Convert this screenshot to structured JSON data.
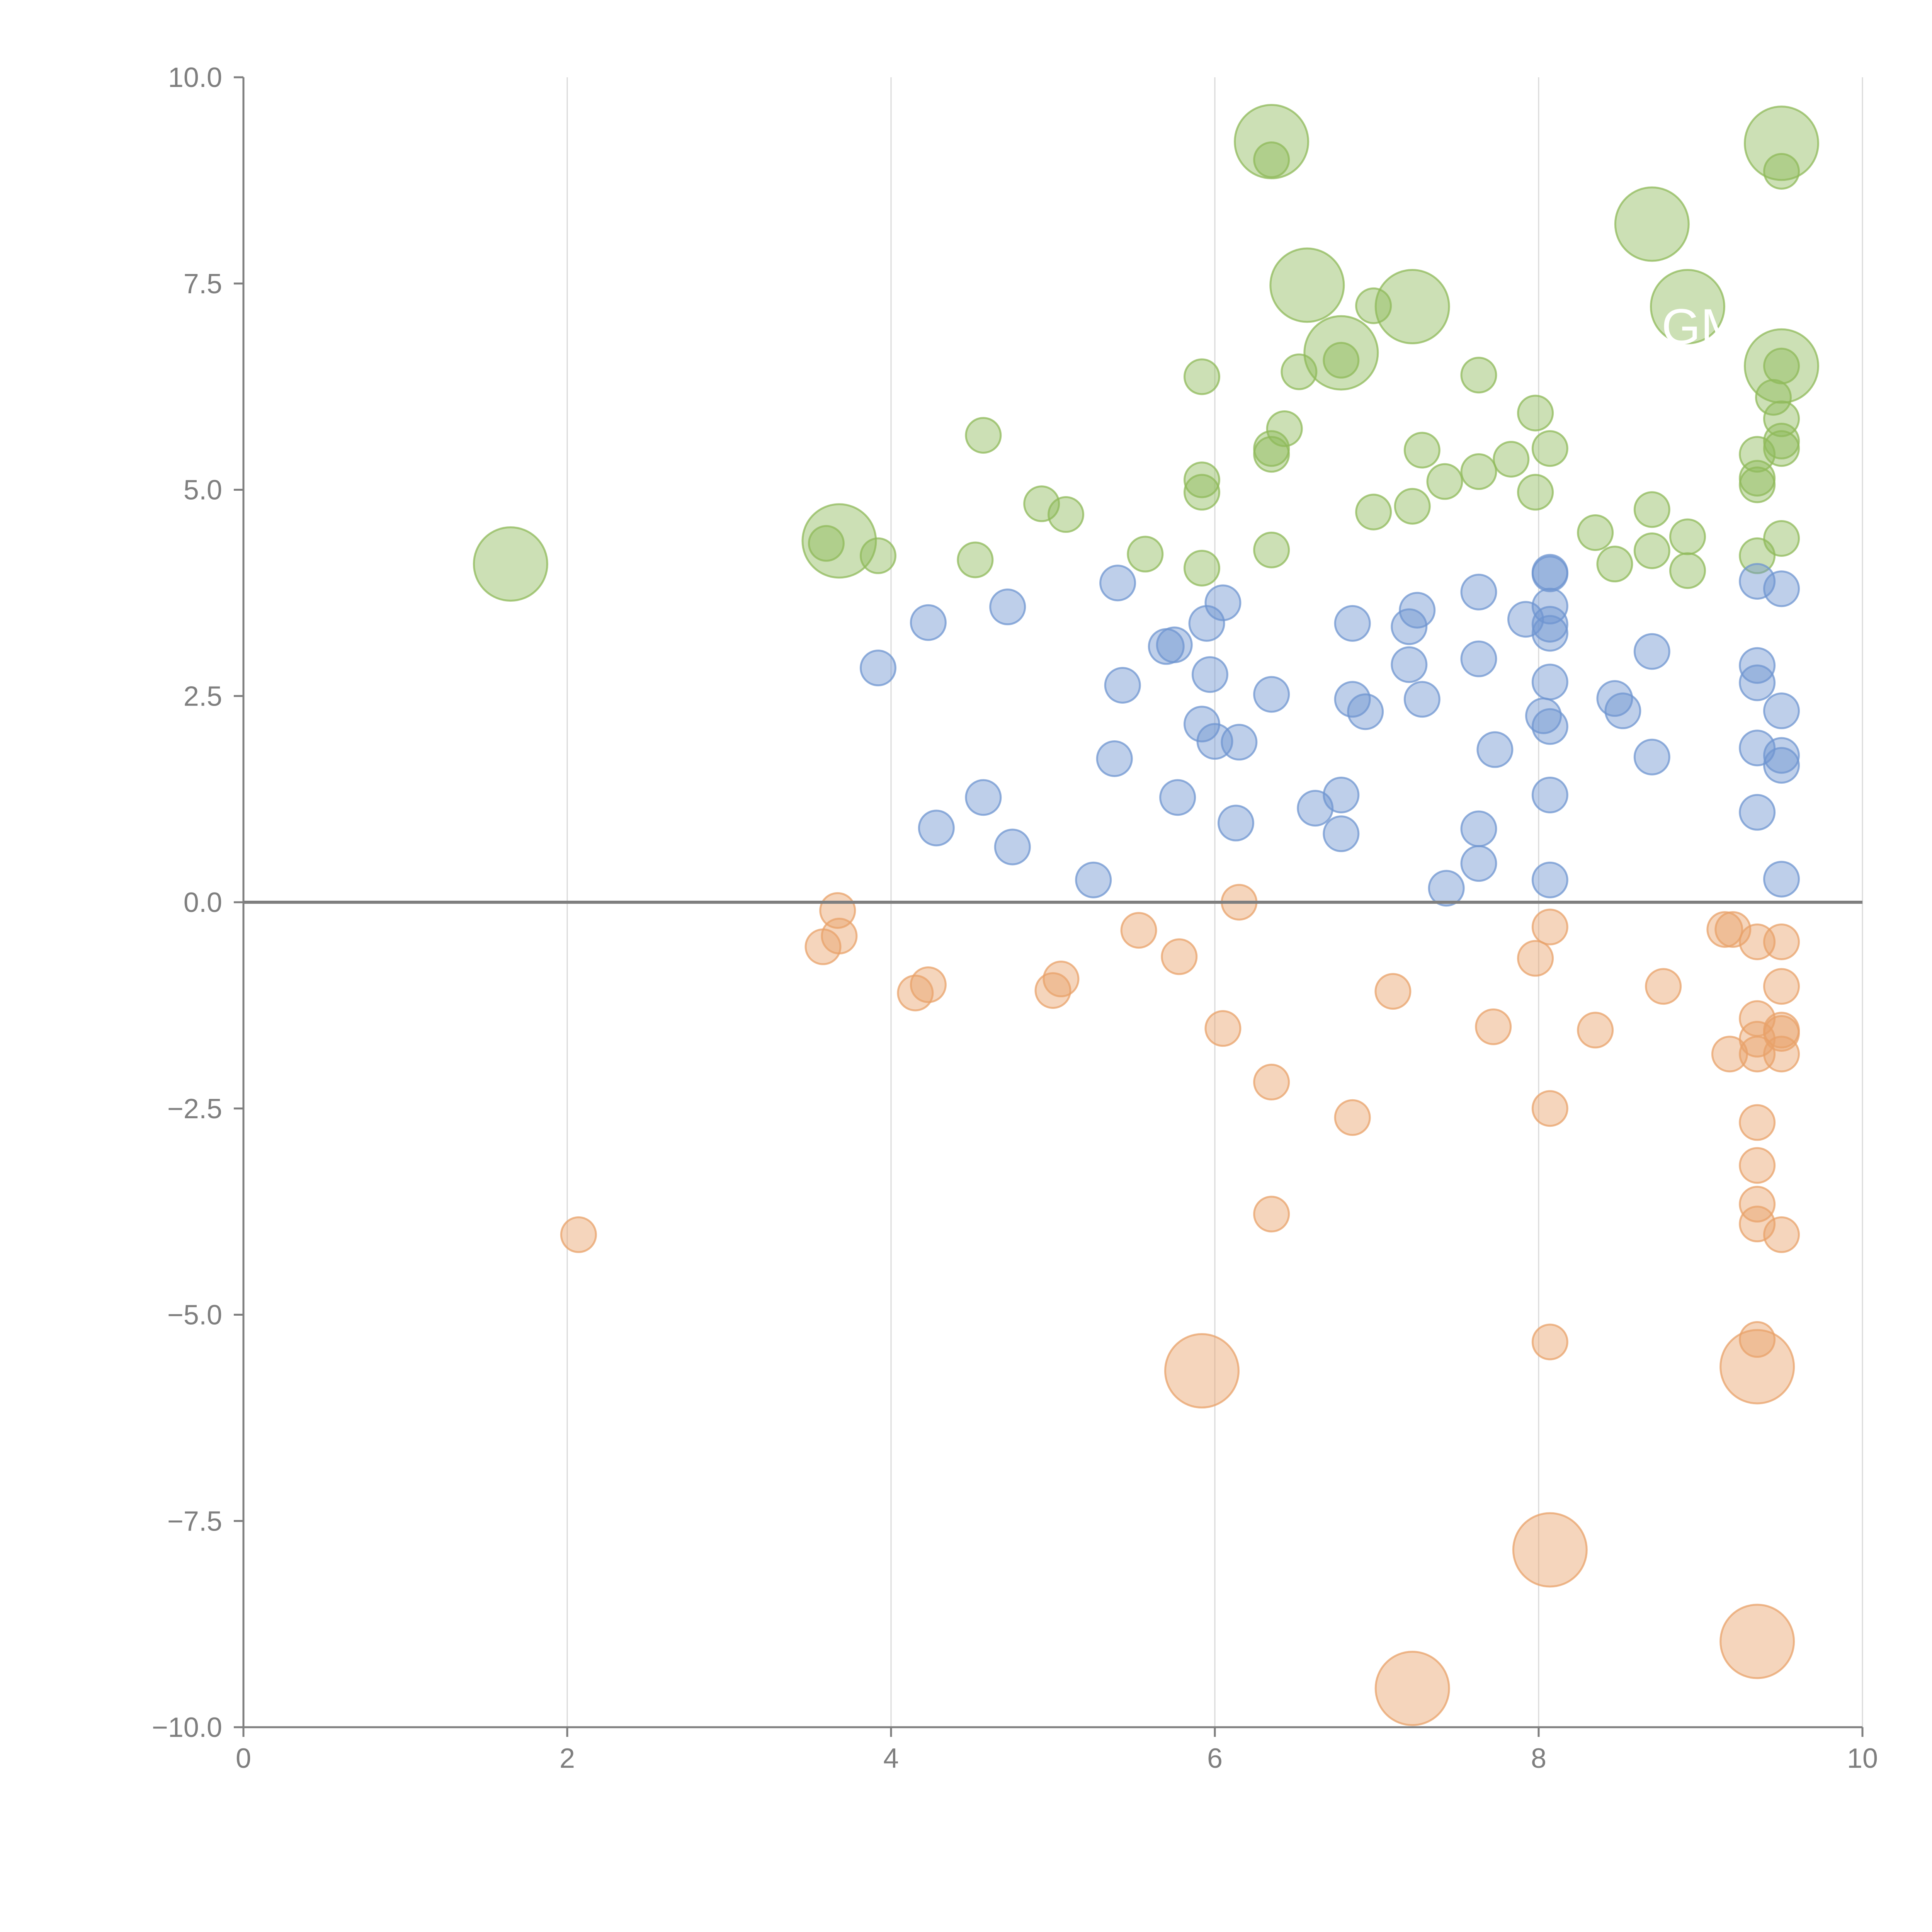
{
  "chart_data": {
    "type": "scatter",
    "title": "",
    "xlabel": "",
    "ylabel": "",
    "xlim": [
      0,
      10
    ],
    "ylim": [
      -10,
      10
    ],
    "x_ticks": [
      0,
      2,
      4,
      6,
      8,
      10
    ],
    "x_tick_labels": [
      "0",
      "2",
      "4",
      "6",
      "8",
      "10"
    ],
    "y_ticks": [
      10,
      7.5,
      5,
      2.5,
      0,
      -2.5,
      -5,
      -7.5,
      -10
    ],
    "y_tick_labels": [
      "10.0",
      "7.5",
      "5.0",
      "2.5",
      "0.0",
      "−2.5",
      "−5.0",
      "−7.5",
      "−10.0"
    ],
    "vertical_grid": true,
    "zero_line": true,
    "annotation": "GM",
    "series": [
      {
        "name": "green",
        "color": "#8fba5a",
        "points": [
          [
            1.65,
            4.1,
            "L"
          ],
          [
            3.68,
            4.38,
            "L"
          ],
          [
            3.6,
            4.35,
            "S"
          ],
          [
            3.92,
            4.2,
            "S"
          ],
          [
            4.52,
            4.15,
            "S"
          ],
          [
            4.57,
            5.66,
            "S"
          ],
          [
            4.93,
            4.83,
            "S"
          ],
          [
            5.08,
            4.7,
            "S"
          ],
          [
            5.57,
            4.22,
            "S"
          ],
          [
            5.92,
            6.37,
            "S"
          ],
          [
            5.92,
            5.12,
            "S"
          ],
          [
            5.92,
            4.97,
            "S"
          ],
          [
            5.92,
            4.05,
            "S"
          ],
          [
            6.35,
            9.22,
            "L"
          ],
          [
            6.35,
            9.0,
            "S"
          ],
          [
            6.35,
            5.5,
            "S"
          ],
          [
            6.35,
            5.43,
            "S"
          ],
          [
            6.35,
            4.27,
            "S"
          ],
          [
            6.43,
            5.74,
            "S"
          ],
          [
            6.52,
            6.43,
            "S"
          ],
          [
            6.57,
            7.48,
            "L"
          ],
          [
            6.78,
            6.66,
            "L"
          ],
          [
            6.78,
            6.57,
            "S"
          ],
          [
            6.98,
            7.23,
            "S"
          ],
          [
            6.98,
            4.73,
            "S"
          ],
          [
            7.22,
            7.22,
            "L"
          ],
          [
            7.22,
            4.8,
            "S"
          ],
          [
            7.28,
            5.48,
            "S"
          ],
          [
            7.42,
            5.1,
            "S"
          ],
          [
            7.63,
            6.39,
            "S"
          ],
          [
            7.63,
            5.22,
            "S"
          ],
          [
            7.83,
            5.37,
            "S"
          ],
          [
            7.98,
            5.93,
            "S"
          ],
          [
            7.98,
            4.97,
            "S"
          ],
          [
            8.07,
            5.5,
            "S"
          ],
          [
            8.35,
            4.48,
            "S"
          ],
          [
            8.47,
            4.1,
            "S"
          ],
          [
            8.7,
            8.22,
            "L"
          ],
          [
            8.7,
            4.76,
            "S"
          ],
          [
            8.7,
            4.26,
            "S"
          ],
          [
            8.92,
            7.22,
            "L"
          ],
          [
            8.92,
            4.43,
            "S"
          ],
          [
            8.92,
            4.02,
            "S"
          ],
          [
            9.35,
            5.43,
            "S"
          ],
          [
            9.35,
            5.14,
            "S"
          ],
          [
            9.35,
            5.06,
            "S"
          ],
          [
            9.35,
            4.2,
            "S"
          ],
          [
            9.5,
            9.2,
            "L"
          ],
          [
            9.5,
            8.86,
            "S"
          ],
          [
            9.5,
            6.5,
            "L"
          ],
          [
            9.5,
            6.5,
            "S"
          ],
          [
            9.45,
            6.12,
            "S"
          ],
          [
            9.5,
            5.86,
            "S"
          ],
          [
            9.5,
            5.59,
            "S"
          ],
          [
            9.5,
            5.5,
            "S"
          ],
          [
            9.5,
            4.41,
            "S"
          ]
        ]
      },
      {
        "name": "blue",
        "color": "#6f95d0",
        "points": [
          [
            3.92,
            2.84
          ],
          [
            4.23,
            3.39
          ],
          [
            4.28,
            0.9
          ],
          [
            4.57,
            1.27
          ],
          [
            4.72,
            3.58
          ],
          [
            4.75,
            0.67
          ],
          [
            5.25,
            0.27
          ],
          [
            5.38,
            1.74
          ],
          [
            5.4,
            3.87
          ],
          [
            5.43,
            2.63
          ],
          [
            5.7,
            3.1
          ],
          [
            5.75,
            3.12
          ],
          [
            5.77,
            1.27
          ],
          [
            5.92,
            2.16
          ],
          [
            5.95,
            3.38
          ],
          [
            5.97,
            2.76
          ],
          [
            6.0,
            1.95
          ],
          [
            6.05,
            3.63
          ],
          [
            6.13,
            0.96
          ],
          [
            6.15,
            1.94
          ],
          [
            6.35,
            2.52
          ],
          [
            6.62,
            1.14
          ],
          [
            6.78,
            1.3
          ],
          [
            6.78,
            0.83
          ],
          [
            6.85,
            3.38
          ],
          [
            6.85,
            2.46
          ],
          [
            6.93,
            2.31
          ],
          [
            7.2,
            3.34
          ],
          [
            7.2,
            2.88
          ],
          [
            7.25,
            3.54
          ],
          [
            7.28,
            2.46
          ],
          [
            7.43,
            0.17
          ],
          [
            7.63,
            3.76
          ],
          [
            7.63,
            2.95
          ],
          [
            7.63,
            0.89
          ],
          [
            7.63,
            0.47
          ],
          [
            7.73,
            1.85
          ],
          [
            7.92,
            3.43
          ],
          [
            8.03,
            2.26
          ],
          [
            8.07,
            4.0
          ],
          [
            8.07,
            3.98
          ],
          [
            8.07,
            3.59
          ],
          [
            8.07,
            3.37
          ],
          [
            8.07,
            3.26
          ],
          [
            8.07,
            2.67
          ],
          [
            8.07,
            2.13
          ],
          [
            8.07,
            1.3
          ],
          [
            8.07,
            0.27
          ],
          [
            8.47,
            2.47
          ],
          [
            8.52,
            2.32
          ],
          [
            8.7,
            3.04
          ],
          [
            8.7,
            1.76
          ],
          [
            9.35,
            3.89
          ],
          [
            9.35,
            2.87
          ],
          [
            9.35,
            2.66
          ],
          [
            9.35,
            1.87
          ],
          [
            9.35,
            1.09
          ],
          [
            9.5,
            3.8
          ],
          [
            9.5,
            2.32
          ],
          [
            9.5,
            1.78
          ],
          [
            9.5,
            1.66
          ],
          [
            9.5,
            0.28
          ]
        ]
      },
      {
        "name": "orange",
        "color": "#e8a26a",
        "points": [
          [
            2.07,
            -4.03,
            "S"
          ],
          [
            3.58,
            -0.54,
            "S"
          ],
          [
            3.67,
            -0.1,
            "S"
          ],
          [
            3.68,
            -0.41,
            "S"
          ],
          [
            4.15,
            -1.1,
            "S"
          ],
          [
            4.23,
            -1.0,
            "S"
          ],
          [
            5.0,
            -1.07,
            "S"
          ],
          [
            5.05,
            -0.93,
            "S"
          ],
          [
            5.53,
            -0.34,
            "S"
          ],
          [
            5.78,
            -0.66,
            "S"
          ],
          [
            5.92,
            -5.68,
            "L"
          ],
          [
            6.05,
            -1.53,
            "S"
          ],
          [
            6.15,
            0.0,
            "S"
          ],
          [
            6.35,
            -2.18,
            "S"
          ],
          [
            6.35,
            -3.78,
            "S"
          ],
          [
            6.85,
            -2.61,
            "S"
          ],
          [
            7.1,
            -1.08,
            "S"
          ],
          [
            7.22,
            -9.53,
            "L"
          ],
          [
            7.72,
            -1.51,
            "S"
          ],
          [
            7.98,
            -0.68,
            "S"
          ],
          [
            8.07,
            -0.3,
            "S"
          ],
          [
            8.07,
            -2.5,
            "S"
          ],
          [
            8.07,
            -5.33,
            "S"
          ],
          [
            8.07,
            -7.85,
            "L"
          ],
          [
            8.35,
            -1.55,
            "S"
          ],
          [
            8.77,
            -1.02,
            "S"
          ],
          [
            9.15,
            -0.33,
            "S"
          ],
          [
            9.2,
            -0.33,
            "S"
          ],
          [
            9.18,
            -1.84,
            "S"
          ],
          [
            9.35,
            -0.48,
            "S"
          ],
          [
            9.35,
            -1.41,
            "S"
          ],
          [
            9.35,
            -1.66,
            "S"
          ],
          [
            9.35,
            -1.84,
            "S"
          ],
          [
            9.35,
            -2.67,
            "S"
          ],
          [
            9.35,
            -3.19,
            "S"
          ],
          [
            9.35,
            -3.66,
            "S"
          ],
          [
            9.35,
            -3.9,
            "S"
          ],
          [
            9.35,
            -5.3,
            "S"
          ],
          [
            9.35,
            -5.63,
            "L"
          ],
          [
            9.35,
            -8.96,
            "L"
          ],
          [
            9.5,
            -0.48,
            "S"
          ],
          [
            9.5,
            -1.02,
            "S"
          ],
          [
            9.5,
            -1.55,
            "S"
          ],
          [
            9.5,
            -1.59,
            "S"
          ],
          [
            9.5,
            -1.84,
            "S"
          ],
          [
            9.5,
            -4.03,
            "S"
          ]
        ]
      }
    ]
  }
}
